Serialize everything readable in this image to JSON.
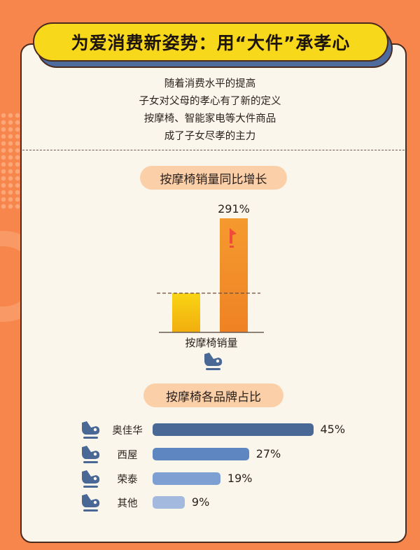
{
  "title": "为爱消费新姿势：用“大件”承孝心",
  "intro": [
    "随着消费水平的提高",
    "子女对父母的孝心有了新的定义",
    "按摩椅、智能家电等大件商品",
    "成了子女尽孝的主力"
  ],
  "chart_data": [
    {
      "type": "bar",
      "title": "按摩椅销量同比增长",
      "xlabel": "按摩椅销量",
      "categories": [
        "",
        ""
      ],
      "values": [
        100,
        291
      ],
      "data_labels": [
        "",
        "291%"
      ],
      "colors": [
        "#f6c30f",
        "#f3902a"
      ],
      "reference_line": "dashed at baseline bar height",
      "icon": "massage-chair-icon"
    },
    {
      "type": "bar",
      "orientation": "horizontal",
      "title": "按摩椅各品牌占比",
      "categories": [
        "奥佳华",
        "西屋",
        "荣泰",
        "其他"
      ],
      "values": [
        45,
        27,
        19,
        9
      ],
      "data_labels": [
        "45%",
        "27%",
        "19%",
        "9%"
      ],
      "colors": [
        "#4a6896",
        "#5e86c0",
        "#7d9fd2",
        "#a3bade"
      ],
      "icon": "massage-chair-icon"
    }
  ],
  "colors": {
    "background": "#f7864c",
    "card": "#fbf6ec",
    "title_bg": "#f8d81a",
    "pill": "#fbd0a9",
    "arrow": "#f04a3a"
  }
}
